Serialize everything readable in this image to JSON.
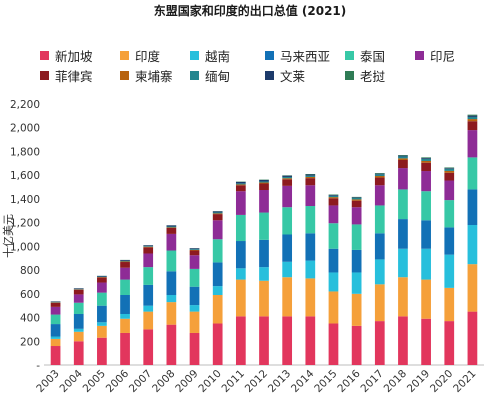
{
  "chart_data": {
    "type": "bar",
    "stacked": true,
    "title": "东盟国家和印度的出口总值 (2021)",
    "ylabel": "十亿美元",
    "xlabel": "",
    "ylim": [
      0,
      2200
    ],
    "ytick_labels": [
      "-",
      "200",
      "400",
      "600",
      "800",
      "1,000",
      "1,200",
      "1,400",
      "1,600",
      "1,800",
      "2,000",
      "2,200"
    ],
    "ytick_values": [
      0,
      200,
      400,
      600,
      800,
      1000,
      1200,
      1400,
      1600,
      1800,
      2000,
      2200
    ],
    "categories": [
      "2003",
      "2004",
      "2005",
      "2006",
      "2007",
      "2008",
      "2009",
      "2010",
      "2011",
      "2012",
      "2013",
      "2014",
      "2015",
      "2016",
      "2017",
      "2018",
      "2019",
      "2020",
      "2021"
    ],
    "legend_position": "top",
    "series": [
      {
        "name": "新加坡",
        "color": "#e2365d",
        "values": [
          160,
          200,
          230,
          270,
          300,
          340,
          270,
          350,
          410,
          410,
          410,
          410,
          350,
          330,
          370,
          410,
          390,
          370,
          450
        ]
      },
      {
        "name": "印度",
        "color": "#f5a03a",
        "values": [
          60,
          80,
          100,
          120,
          150,
          190,
          180,
          240,
          310,
          300,
          330,
          320,
          270,
          270,
          310,
          330,
          330,
          280,
          400
        ]
      },
      {
        "name": "越南",
        "color": "#27bfdc",
        "values": [
          20,
          25,
          30,
          40,
          50,
          60,
          55,
          75,
          95,
          115,
          130,
          150,
          160,
          180,
          210,
          240,
          260,
          280,
          330
        ]
      },
      {
        "name": "马来西亚",
        "color": "#1271b6",
        "values": [
          105,
          125,
          140,
          160,
          175,
          200,
          155,
          200,
          230,
          230,
          230,
          230,
          200,
          190,
          220,
          250,
          240,
          230,
          300
        ]
      },
      {
        "name": "泰国",
        "color": "#37c8a6",
        "values": [
          80,
          95,
          110,
          130,
          150,
          175,
          150,
          195,
          220,
          230,
          230,
          230,
          215,
          215,
          235,
          250,
          245,
          230,
          270
        ]
      },
      {
        "name": "印尼",
        "color": "#8e2c96",
        "values": [
          65,
          70,
          85,
          100,
          115,
          140,
          115,
          160,
          200,
          190,
          180,
          175,
          150,
          145,
          170,
          180,
          170,
          165,
          230
        ]
      },
      {
        "name": "菲律宾",
        "color": "#8d1a1f",
        "values": [
          35,
          40,
          42,
          48,
          52,
          50,
          40,
          52,
          50,
          55,
          55,
          60,
          60,
          55,
          65,
          68,
          70,
          65,
          75
        ]
      },
      {
        "name": "柬埔寨",
        "color": "#b7620e",
        "values": [
          3,
          3,
          4,
          5,
          5,
          5,
          5,
          6,
          7,
          8,
          9,
          10,
          10,
          11,
          13,
          14,
          15,
          16,
          18
        ]
      },
      {
        "name": "缅甸",
        "color": "#23868f",
        "values": [
          3,
          3,
          4,
          5,
          5,
          7,
          7,
          8,
          9,
          9,
          11,
          11,
          12,
          12,
          14,
          16,
          17,
          17,
          18
        ]
      },
      {
        "name": "文莱",
        "color": "#1d3b6b",
        "values": [
          4,
          5,
          6,
          7,
          7,
          10,
          7,
          9,
          12,
          13,
          11,
          10,
          6,
          5,
          6,
          7,
          7,
          6,
          11
        ]
      },
      {
        "name": "老挝",
        "color": "#2f7c55",
        "values": [
          1,
          1,
          1,
          1,
          1,
          1,
          1,
          2,
          3,
          3,
          3,
          4,
          4,
          4,
          5,
          5,
          6,
          6,
          8
        ]
      }
    ]
  }
}
